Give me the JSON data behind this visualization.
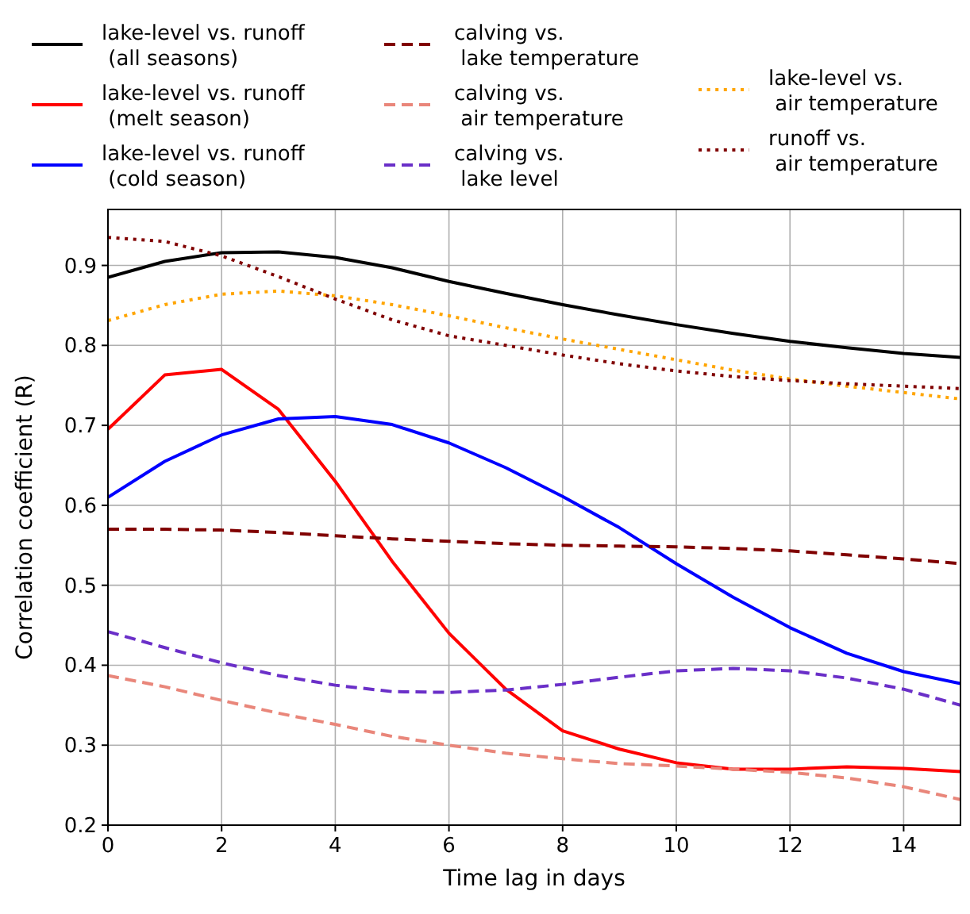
{
  "chart_data": {
    "type": "line",
    "xlabel": "Time lag in days",
    "ylabel": "Correlation coefficient (R)",
    "x": [
      0,
      1,
      2,
      3,
      4,
      5,
      6,
      7,
      8,
      9,
      10,
      11,
      12,
      13,
      14,
      15
    ],
    "xlim": [
      0,
      15
    ],
    "xticks": [
      0,
      2,
      4,
      6,
      8,
      10,
      12,
      14
    ],
    "ylim": [
      0.2,
      0.97
    ],
    "yticks": [
      0.2,
      0.3,
      0.4,
      0.5,
      0.6,
      0.7,
      0.8,
      0.9
    ],
    "grid": true,
    "legend": "top",
    "marker": "none",
    "series": [
      {
        "name": "lake-level vs. runoff\n (all seasons)",
        "color": "#000000",
        "line_style": "solid",
        "values": [
          0.885,
          0.905,
          0.916,
          0.917,
          0.91,
          0.897,
          0.88,
          0.865,
          0.851,
          0.838,
          0.826,
          0.815,
          0.805,
          0.797,
          0.79,
          0.785
        ]
      },
      {
        "name": "lake-level vs. runoff\n (melt season)",
        "color": "#ff0000",
        "line_style": "solid",
        "values": [
          0.695,
          0.763,
          0.77,
          0.72,
          0.63,
          0.53,
          0.44,
          0.37,
          0.318,
          0.295,
          0.278,
          0.27,
          0.27,
          0.273,
          0.271,
          0.267
        ]
      },
      {
        "name": "lake-level vs. runoff\n (cold season)",
        "color": "#0000ff",
        "line_style": "solid",
        "values": [
          0.61,
          0.655,
          0.688,
          0.708,
          0.711,
          0.701,
          0.678,
          0.647,
          0.611,
          0.572,
          0.527,
          0.485,
          0.447,
          0.415,
          0.392,
          0.377
        ]
      },
      {
        "name": "calving vs.\n lake temperature",
        "color": "#800000",
        "line_style": "dashed",
        "values": [
          0.57,
          0.57,
          0.569,
          0.566,
          0.562,
          0.558,
          0.555,
          0.552,
          0.55,
          0.549,
          0.548,
          0.546,
          0.543,
          0.538,
          0.533,
          0.527
        ]
      },
      {
        "name": "calving vs.\n air temperature",
        "color": "#e9867a",
        "line_style": "dashed",
        "values": [
          0.387,
          0.373,
          0.356,
          0.34,
          0.326,
          0.311,
          0.3,
          0.29,
          0.283,
          0.277,
          0.274,
          0.27,
          0.266,
          0.259,
          0.248,
          0.232
        ]
      },
      {
        "name": "calving vs.\n lake level",
        "color": "#6a2fc8",
        "line_style": "dashed",
        "values": [
          0.442,
          0.422,
          0.403,
          0.387,
          0.375,
          0.367,
          0.366,
          0.369,
          0.376,
          0.385,
          0.393,
          0.396,
          0.393,
          0.384,
          0.37,
          0.35
        ]
      },
      {
        "name": "lake-level vs.\n air temperature",
        "color": "#ffa500",
        "line_style": "dotted",
        "values": [
          0.831,
          0.851,
          0.864,
          0.868,
          0.862,
          0.851,
          0.837,
          0.822,
          0.808,
          0.795,
          0.782,
          0.769,
          0.758,
          0.749,
          0.741,
          0.733
        ]
      },
      {
        "name": "runoff vs.\n air temperature",
        "color": "#800000",
        "line_style": "dotted",
        "values": [
          0.935,
          0.93,
          0.912,
          0.886,
          0.858,
          0.832,
          0.812,
          0.8,
          0.788,
          0.777,
          0.768,
          0.761,
          0.756,
          0.752,
          0.749,
          0.746
        ]
      }
    ]
  }
}
